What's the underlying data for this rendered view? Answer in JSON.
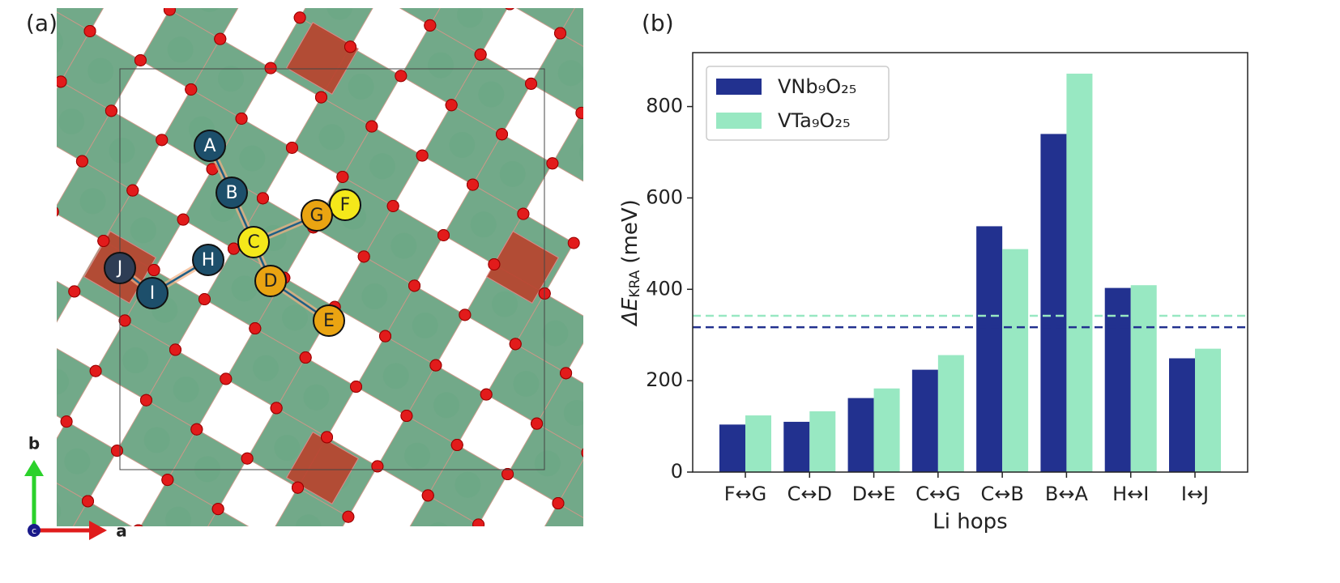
{
  "panel_a": {
    "label": "(a)",
    "sites": [
      "A",
      "B",
      "C",
      "D",
      "E",
      "F",
      "G",
      "H",
      "I",
      "J"
    ],
    "axis_labels": [
      "a",
      "b",
      "c"
    ]
  },
  "chart_data": {
    "type": "bar",
    "panel_label": "(b)",
    "xlabel": "Li hops",
    "ylabel": {
      "symbol": "ΔE",
      "subscript": "KRA",
      "unit": "(meV)"
    },
    "categories": [
      "F↔G",
      "C↔D",
      "D↔E",
      "C↔G",
      "C↔B",
      "B↔A",
      "H↔I",
      "I↔J"
    ],
    "series": [
      {
        "name": "VNb₉O₂₅",
        "color": "#22318f",
        "values": [
          104,
          110,
          162,
          224,
          538,
          740,
          403,
          249
        ],
        "reference": 317
      },
      {
        "name": "VTa₉O₂₅",
        "color": "#98e8c2",
        "values": [
          124,
          133,
          183,
          256,
          488,
          872,
          409,
          270
        ],
        "reference": 342
      }
    ],
    "ylim": [
      0,
      918
    ],
    "yticks": [
      0,
      200,
      400,
      600,
      800
    ],
    "legend": "upper left"
  }
}
